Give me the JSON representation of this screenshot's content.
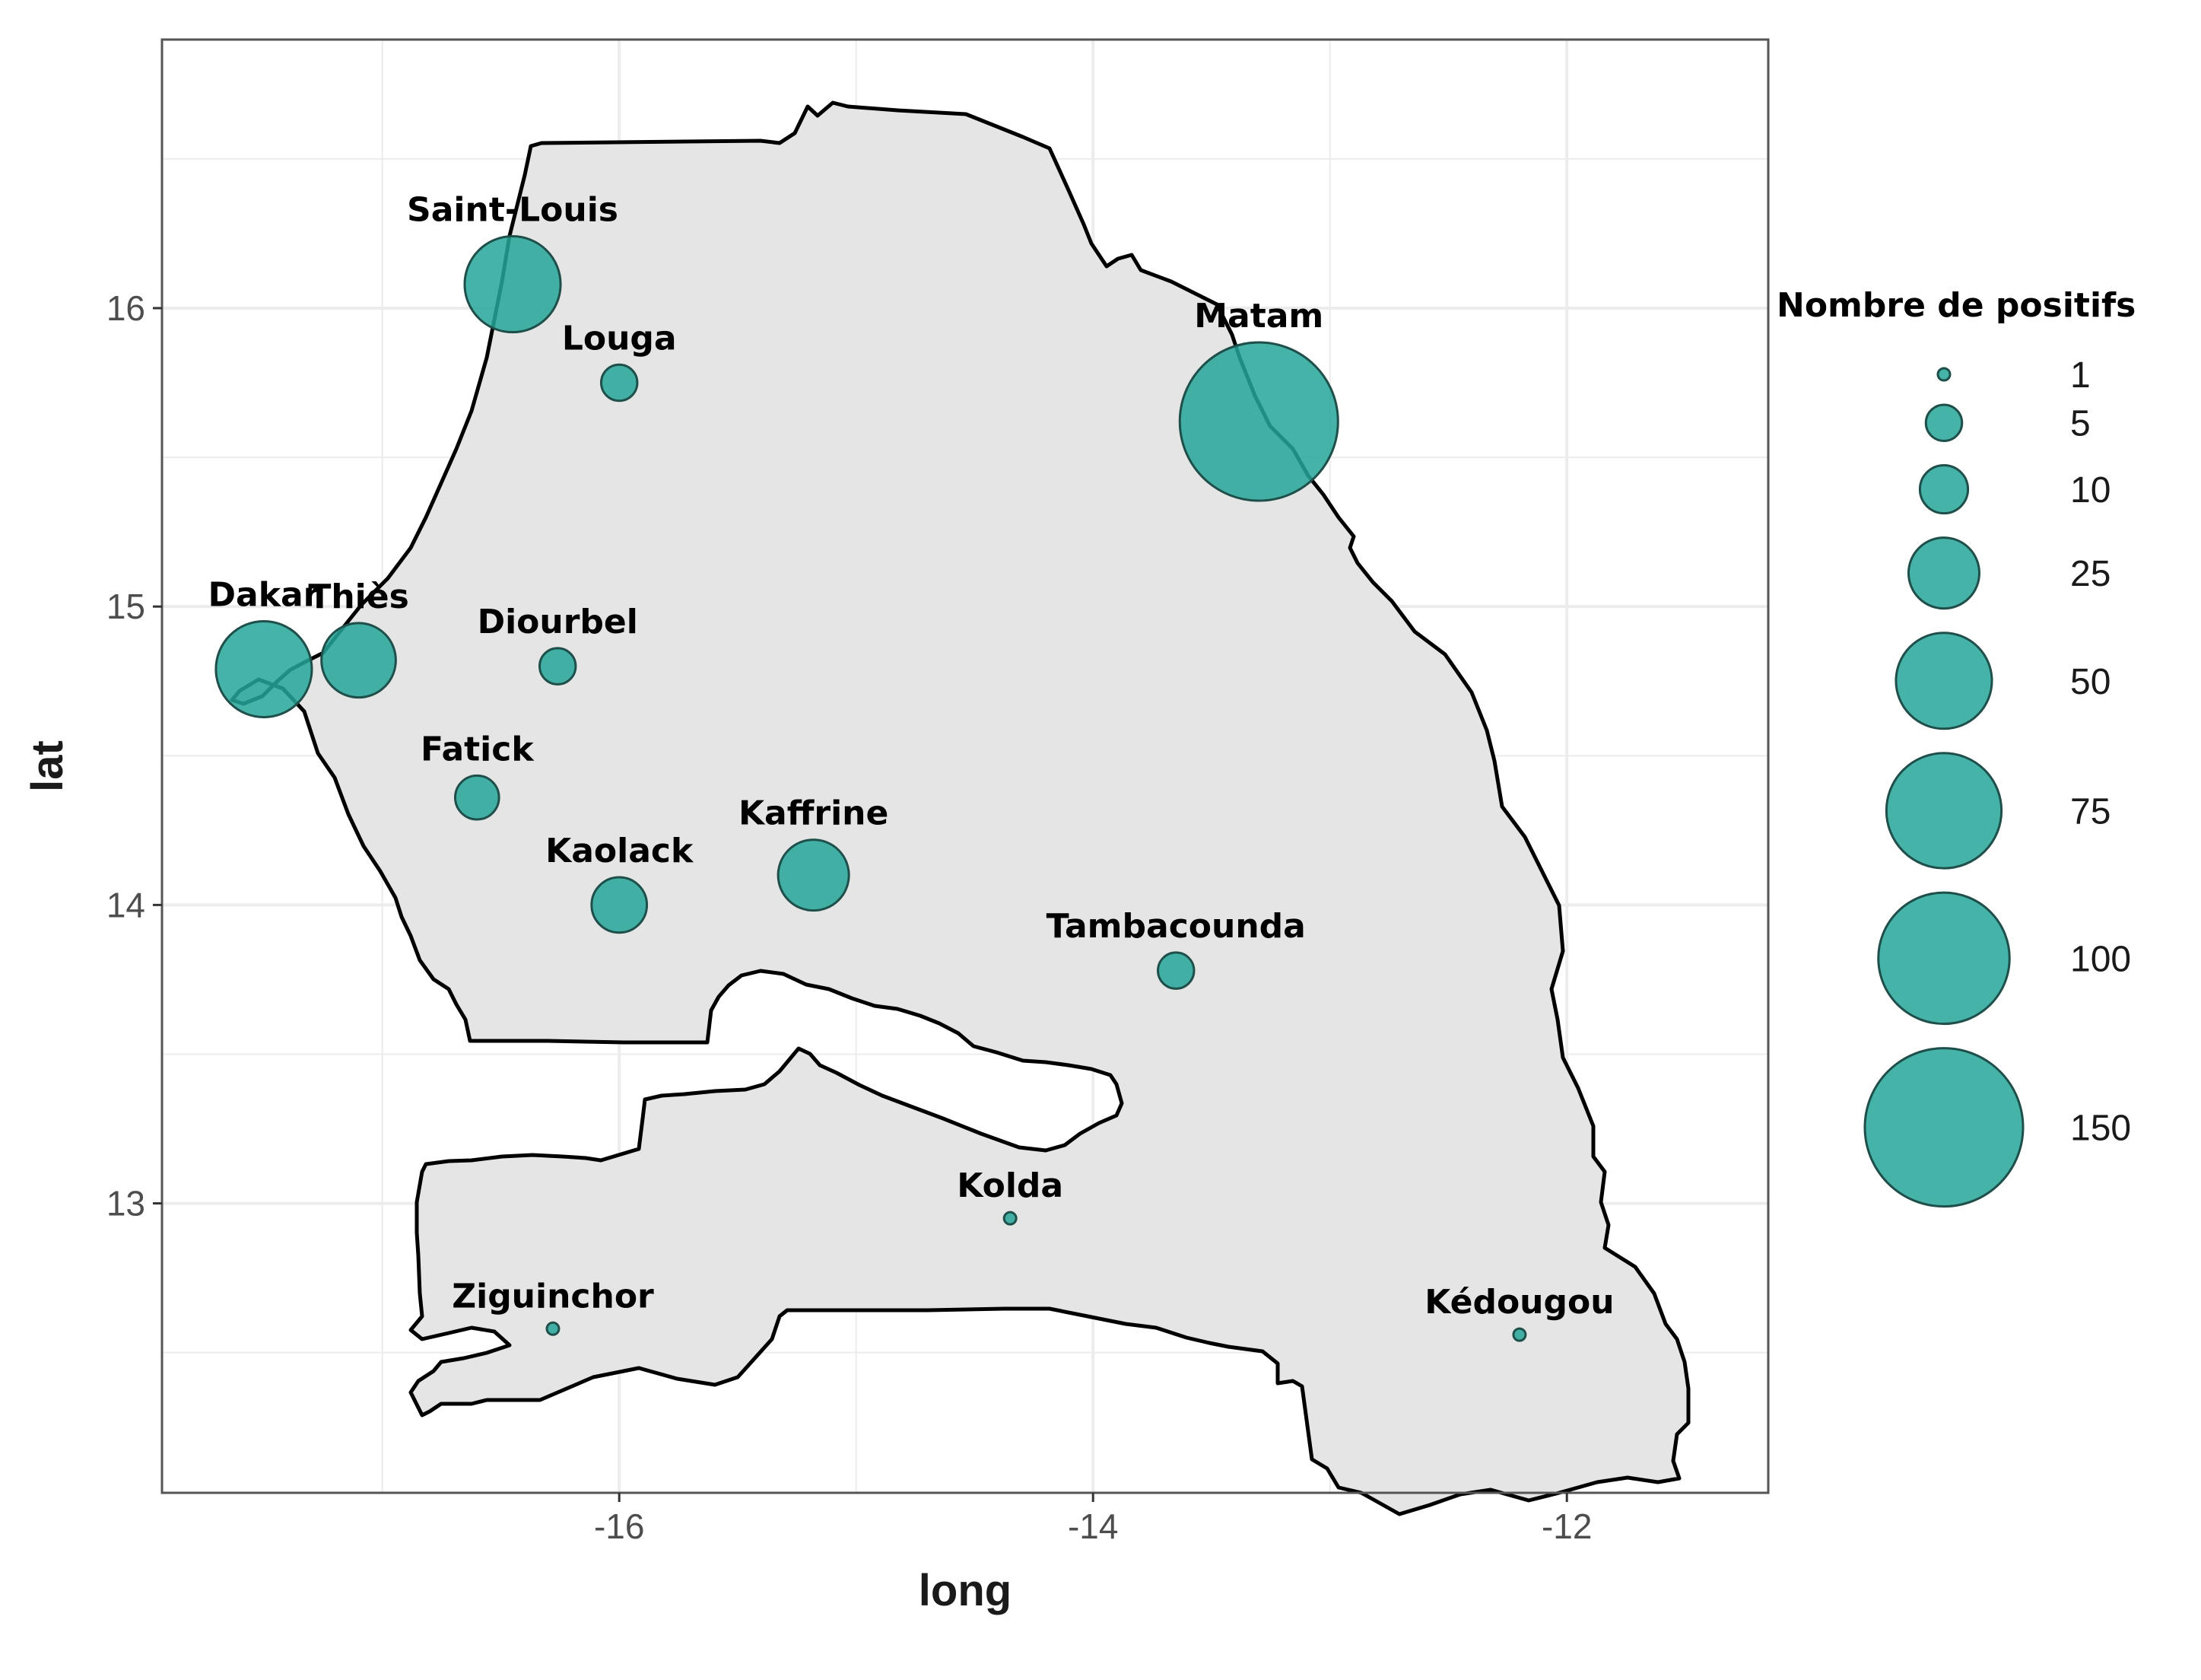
{
  "chart_data": {
    "type": "scatter",
    "xlabel": "long",
    "ylabel": "lat",
    "xlim": [
      -17.93,
      -11.15
    ],
    "ylim": [
      12.03,
      16.9
    ],
    "x_ticks": [
      -16,
      -14,
      -12
    ],
    "y_ticks": [
      13,
      14,
      15,
      16
    ],
    "x_tick_labels": [
      "-16",
      "-14",
      "-12"
    ],
    "y_tick_labels": [
      "13",
      "14",
      "15",
      "16"
    ],
    "grid": true,
    "legend_position": "right",
    "legend": {
      "title": "Nombre de positifs",
      "breaks": [
        1,
        5,
        10,
        25,
        50,
        75,
        100,
        150
      ],
      "labels": [
        "1",
        "5",
        "10",
        "25",
        "50",
        "75",
        "100",
        "150"
      ]
    },
    "colors": {
      "bubble_fill": "#26a69a",
      "bubble_stroke": "#1f4f4a",
      "land_fill": "#e5e5e5",
      "border_stroke": "#000000",
      "grid": "#ececec",
      "panel_border": "#555555"
    },
    "points": [
      {
        "name": "Saint-Louis",
        "long": -16.45,
        "lat": 16.08,
        "value": 50
      },
      {
        "name": "Louga",
        "long": -16.0,
        "lat": 15.75,
        "value": 5
      },
      {
        "name": "Matam",
        "long": -13.3,
        "lat": 15.62,
        "value": 150
      },
      {
        "name": "Dakar",
        "long": -17.5,
        "lat": 14.79,
        "value": 50
      },
      {
        "name": "Thiès",
        "long": -17.1,
        "lat": 14.82,
        "value": 28
      },
      {
        "name": "Diourbel",
        "long": -16.26,
        "lat": 14.8,
        "value": 5
      },
      {
        "name": "Fatick",
        "long": -16.6,
        "lat": 14.36,
        "value": 8
      },
      {
        "name": "Kaolack",
        "long": -16.0,
        "lat": 14.0,
        "value": 14
      },
      {
        "name": "Kaffrine",
        "long": -15.18,
        "lat": 14.1,
        "value": 25
      },
      {
        "name": "Tambacounda",
        "long": -13.65,
        "lat": 13.78,
        "value": 5
      },
      {
        "name": "Kolda",
        "long": -14.35,
        "lat": 12.95,
        "value": 1
      },
      {
        "name": "Ziguinchor",
        "long": -16.28,
        "lat": 12.58,
        "value": 1
      },
      {
        "name": "Kédougou",
        "long": -12.2,
        "lat": 12.56,
        "value": 1
      }
    ]
  }
}
